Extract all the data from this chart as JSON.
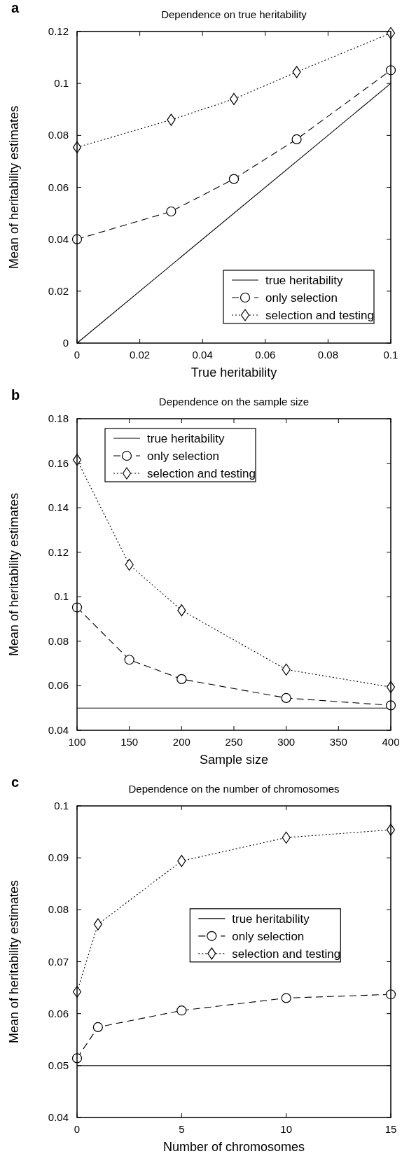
{
  "chart_data": [
    {
      "type": "line",
      "title": "Dependence on true heritability",
      "xlabel": "True heritability",
      "ylabel": "Mean of heritability estimates",
      "annotations": [
        "a"
      ],
      "xlim": [
        0,
        0.1
      ],
      "xticks": [
        0,
        0.02,
        0.04,
        0.06,
        0.08,
        0.1
      ],
      "ylim": [
        0,
        0.12
      ],
      "yticks": [
        0,
        0.02,
        0.04,
        0.06,
        0.08,
        0.1,
        0.12
      ],
      "legend": "bottom right",
      "series": [
        {
          "name": "true heritability",
          "color": "#000000",
          "line_style": "solid",
          "marker": "none",
          "x": [
            0,
            0.1
          ],
          "values": [
            0,
            0.1
          ]
        },
        {
          "name": "only selection",
          "color": "#000000",
          "line_style": "dashed",
          "marker": "circle",
          "x": [
            0,
            0.03,
            0.05,
            0.07,
            0.1
          ],
          "values": [
            0.04,
            0.0507,
            0.0632,
            0.0785,
            0.1051
          ]
        },
        {
          "name": "selection and testing",
          "color": "#000000",
          "line_style": "dotted",
          "marker": "diamond",
          "x": [
            0,
            0.03,
            0.05,
            0.07,
            0.1
          ],
          "values": [
            0.0754,
            0.086,
            0.094,
            0.1044,
            0.1194
          ]
        }
      ]
    },
    {
      "type": "line",
      "title": "Dependence on the sample size",
      "xlabel": "Sample size",
      "ylabel": "Mean of heritability estimates",
      "annotations": [
        "b"
      ],
      "xlim": [
        100,
        400
      ],
      "xticks": [
        100,
        150,
        200,
        250,
        300,
        350,
        400
      ],
      "ylim": [
        0.04,
        0.18
      ],
      "yticks": [
        0.04,
        0.06,
        0.08,
        0.1,
        0.12,
        0.14,
        0.16,
        0.18
      ],
      "legend": "top left",
      "series": [
        {
          "name": "true heritability",
          "color": "#000000",
          "line_style": "solid",
          "marker": "none",
          "x": [
            100,
            400
          ],
          "values": [
            0.05,
            0.05
          ]
        },
        {
          "name": "only selection",
          "color": "#000000",
          "line_style": "dashed",
          "marker": "circle",
          "x": [
            100,
            150,
            200,
            300,
            400
          ],
          "values": [
            0.0952,
            0.0717,
            0.063,
            0.0545,
            0.0512
          ]
        },
        {
          "name": "selection and testing",
          "color": "#000000",
          "line_style": "dotted",
          "marker": "diamond",
          "x": [
            100,
            150,
            200,
            300,
            400
          ],
          "values": [
            0.1615,
            0.1144,
            0.0939,
            0.0673,
            0.0594
          ]
        }
      ]
    },
    {
      "type": "line",
      "title": "Dependence on the number of chromosomes",
      "xlabel": "Number of chromosomes",
      "ylabel": "Mean of heritability estimates",
      "annotations": [
        "c"
      ],
      "xlim": [
        0,
        15
      ],
      "xticks": [
        0,
        5,
        10,
        15
      ],
      "ylim": [
        0.04,
        0.1
      ],
      "yticks": [
        0.04,
        0.05,
        0.06,
        0.07,
        0.08,
        0.09,
        0.1
      ],
      "legend": "center",
      "series": [
        {
          "name": "true heritability",
          "color": "#000000",
          "line_style": "solid",
          "marker": "none",
          "x": [
            0,
            15
          ],
          "values": [
            0.05,
            0.05
          ]
        },
        {
          "name": "only selection",
          "color": "#000000",
          "line_style": "dashed",
          "marker": "circle",
          "x": [
            0,
            1,
            5,
            10,
            15
          ],
          "values": [
            0.0514,
            0.0574,
            0.0606,
            0.063,
            0.0637
          ]
        },
        {
          "name": "selection and testing",
          "color": "#000000",
          "line_style": "dotted",
          "marker": "diamond",
          "x": [
            0,
            1,
            5,
            10,
            15
          ],
          "values": [
            0.0642,
            0.0772,
            0.0894,
            0.0939,
            0.0954
          ]
        }
      ]
    }
  ]
}
